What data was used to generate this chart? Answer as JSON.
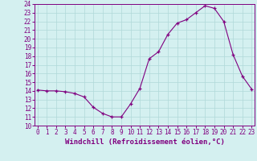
{
  "hours": [
    0,
    1,
    2,
    3,
    4,
    5,
    6,
    7,
    8,
    9,
    10,
    11,
    12,
    13,
    14,
    15,
    16,
    17,
    18,
    19,
    20,
    21,
    22,
    23
  ],
  "values": [
    14.1,
    14.0,
    14.0,
    13.9,
    13.7,
    13.3,
    12.1,
    11.4,
    11.0,
    11.0,
    12.5,
    14.3,
    17.7,
    18.5,
    20.5,
    21.8,
    22.2,
    23.0,
    23.8,
    23.5,
    22.0,
    18.2,
    15.7,
    14.2
  ],
  "ylim": [
    10,
    24
  ],
  "yticks": [
    10,
    11,
    12,
    13,
    14,
    15,
    16,
    17,
    18,
    19,
    20,
    21,
    22,
    23,
    24
  ],
  "xticks": [
    0,
    1,
    2,
    3,
    4,
    5,
    6,
    7,
    8,
    9,
    10,
    11,
    12,
    13,
    14,
    15,
    16,
    17,
    18,
    19,
    20,
    21,
    22,
    23
  ],
  "xlabel": "Windchill (Refroidissement éolien,°C)",
  "line_color": "#800080",
  "marker": "+",
  "bg_color": "#d4f0f0",
  "grid_color": "#b0d8d8",
  "axis_color": "#800080",
  "tick_color": "#800080",
  "label_color": "#800080"
}
